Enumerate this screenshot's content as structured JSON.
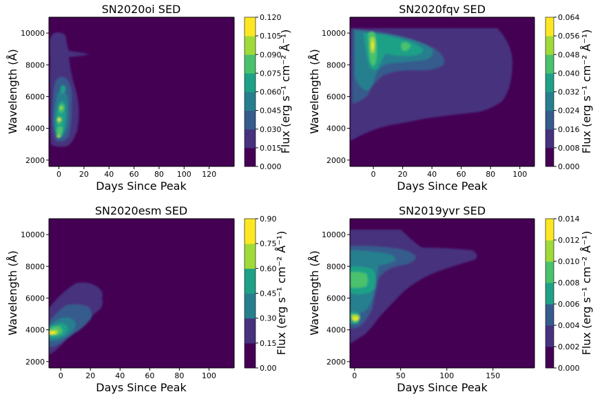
{
  "chart_data": [
    {
      "type": "contour",
      "title": "SN2020oi SED",
      "xlabel": "Days Since Peak",
      "ylabel": "Wavelength (Å)",
      "colorbar_label": "Flux (erg s⁻¹ cm⁻² Å⁻¹)",
      "xlim": [
        -8,
        140
      ],
      "ylim": [
        1600,
        11000
      ],
      "xticks": [
        0,
        20,
        40,
        60,
        80,
        100,
        120
      ],
      "yticks": [
        2000,
        4000,
        6000,
        8000,
        10000
      ],
      "cbar_levels": [
        0.0,
        0.015,
        0.03,
        0.045,
        0.06,
        0.075,
        0.09,
        0.105,
        0.12
      ],
      "cbar_tick_labels": [
        "0.000",
        "0.015",
        "0.030",
        "0.045",
        "0.060",
        "0.075",
        "0.090",
        "0.105",
        "0.120"
      ],
      "data_extent": {
        "x": [
          -8,
          22
        ],
        "y": [
          2600,
          10000
        ]
      },
      "features": [
        {
          "x": 0,
          "y": 3600,
          "level": 0.11
        },
        {
          "x": 0,
          "y": 4400,
          "level": 0.11
        },
        {
          "x": 2,
          "y": 5200,
          "level": 0.1
        },
        {
          "x": 3,
          "y": 6200,
          "level": 0.06
        },
        {
          "x": 8,
          "y": 8600,
          "level": 0.02
        }
      ]
    },
    {
      "type": "contour",
      "title": "SN2020fqv SED",
      "xlabel": "Days Since Peak",
      "ylabel": "Wavelength (Å)",
      "colorbar_label": "Flux (erg s⁻¹ cm⁻² Å⁻¹)",
      "xlim": [
        -16,
        110
      ],
      "ylim": [
        1600,
        11000
      ],
      "xticks": [
        0,
        20,
        40,
        60,
        80,
        100
      ],
      "yticks": [
        2000,
        4000,
        6000,
        8000,
        10000
      ],
      "cbar_levels": [
        0.0,
        0.008,
        0.016,
        0.024,
        0.032,
        0.04,
        0.048,
        0.056,
        0.064
      ],
      "cbar_tick_labels": [
        "0.000",
        "0.008",
        "0.016",
        "0.024",
        "0.032",
        "0.040",
        "0.048",
        "0.056",
        "0.064"
      ],
      "data_extent": {
        "x": [
          -16,
          95
        ],
        "y": [
          3200,
          10300
        ]
      },
      "features": [
        {
          "x": 0,
          "y": 9000,
          "level": 0.062
        },
        {
          "x": 20,
          "y": 9100,
          "level": 0.045
        },
        {
          "x": 10,
          "y": 7800,
          "level": 0.03
        },
        {
          "x": 40,
          "y": 8000,
          "level": 0.02
        },
        {
          "x": 20,
          "y": 5500,
          "level": 0.016
        }
      ]
    },
    {
      "type": "contour",
      "title": "SN2020esm SED",
      "xlabel": "Days Since Peak",
      "ylabel": "Wavelength (Å)",
      "colorbar_label": "Flux (erg s⁻¹ cm⁻² Å⁻¹)",
      "xlim": [
        -8,
        117
      ],
      "ylim": [
        1600,
        11000
      ],
      "xticks": [
        0,
        20,
        40,
        60,
        80,
        100
      ],
      "yticks": [
        2000,
        4000,
        6000,
        8000,
        10000
      ],
      "cbar_levels": [
        0.0,
        0.15,
        0.3,
        0.45,
        0.6,
        0.75,
        0.9
      ],
      "cbar_tick_labels": [
        "0.00",
        "0.15",
        "0.30",
        "0.45",
        "0.60",
        "0.75",
        "0.90"
      ],
      "data_extent": {
        "x": [
          -8,
          40
        ],
        "y": [
          2400,
          7000
        ]
      },
      "features": [
        {
          "x": 0,
          "y": 3700,
          "level": 0.8
        },
        {
          "x": 5,
          "y": 4100,
          "level": 0.6
        },
        {
          "x": 10,
          "y": 4400,
          "level": 0.4
        },
        {
          "x": 15,
          "y": 5600,
          "level": 0.2
        }
      ]
    },
    {
      "type": "contour",
      "title": "SN2019yvr SED",
      "xlabel": "Days Since Peak",
      "ylabel": "Wavelength (Å)",
      "colorbar_label": "Flux (erg s⁻¹ cm⁻² Å⁻¹)",
      "xlim": [
        -5,
        195
      ],
      "ylim": [
        1600,
        11000
      ],
      "xticks": [
        0,
        50,
        100,
        150
      ],
      "yticks": [
        2000,
        4000,
        6000,
        8000,
        10000
      ],
      "cbar_levels": [
        0.0,
        0.002,
        0.004,
        0.006,
        0.008,
        0.01,
        0.012,
        0.014
      ],
      "cbar_tick_labels": [
        "0.000",
        "0.002",
        "0.004",
        "0.006",
        "0.008",
        "0.010",
        "0.012",
        "0.014"
      ],
      "data_extent": {
        "x": [
          -5,
          135
        ],
        "y": [
          3200,
          10300
        ]
      },
      "features": [
        {
          "x": 0,
          "y": 4600,
          "level": 0.0135
        },
        {
          "x": 5,
          "y": 7000,
          "level": 0.009
        },
        {
          "x": 5,
          "y": 8600,
          "level": 0.006
        },
        {
          "x": 60,
          "y": 8200,
          "level": 0.004
        },
        {
          "x": 100,
          "y": 9000,
          "level": 0.003
        }
      ]
    }
  ],
  "colors": {
    "viridis": [
      "#440154",
      "#46327e",
      "#365c8d",
      "#277f8e",
      "#1fa187",
      "#4ac16d",
      "#a0da39",
      "#fde725"
    ],
    "background": "#440154"
  }
}
